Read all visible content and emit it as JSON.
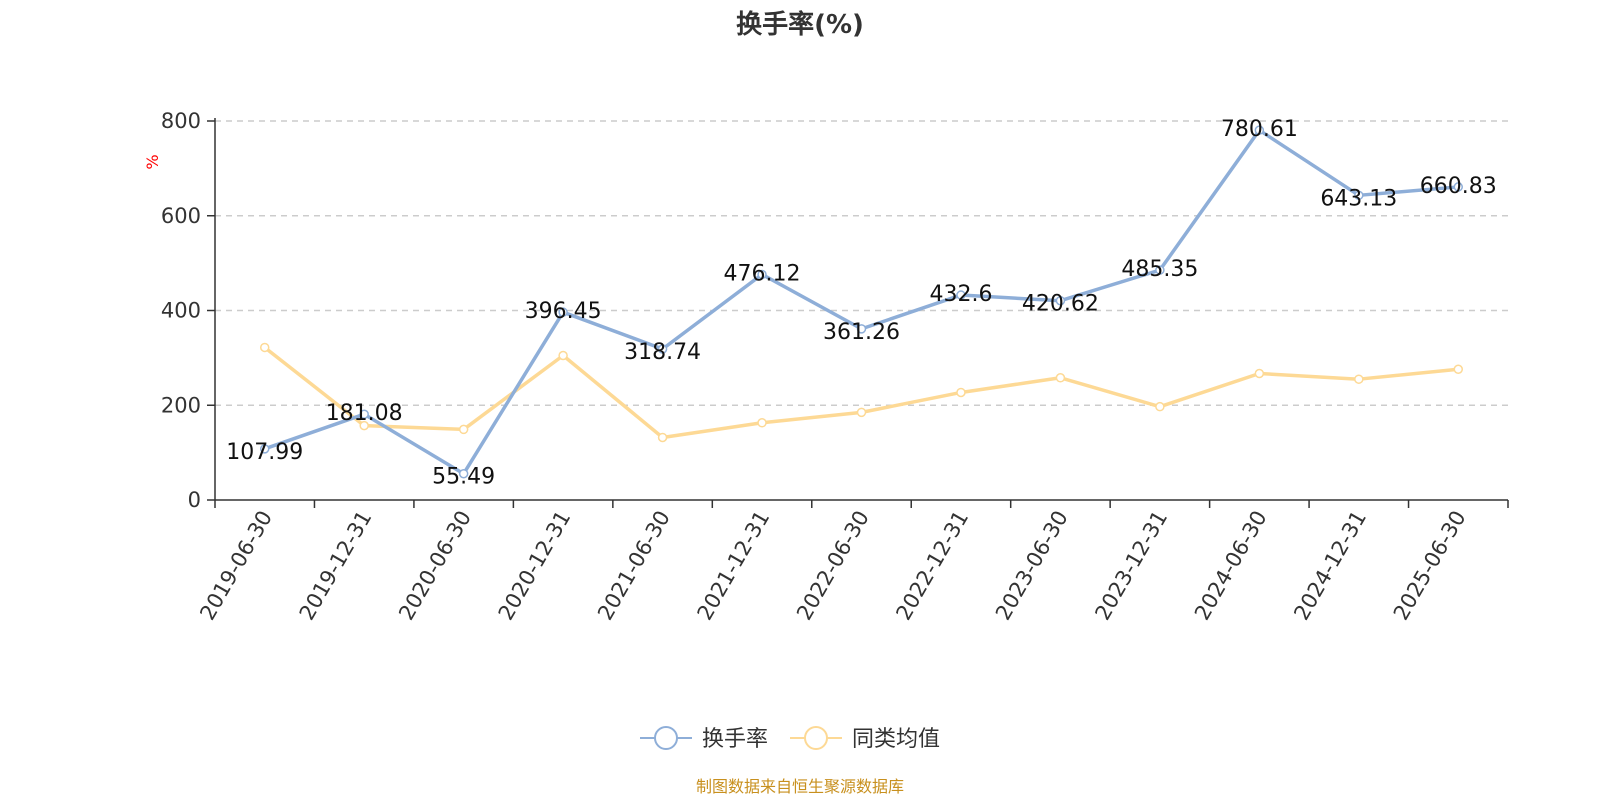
{
  "chart_data": {
    "type": "line",
    "title": "换手率(%)",
    "ylabel": "%",
    "xlabel": "",
    "ylim": [
      0,
      800
    ],
    "yticks": [
      0,
      200,
      400,
      600,
      800
    ],
    "grid": true,
    "legend_position": "bottom-center",
    "categories": [
      "2019-06-30",
      "2019-12-31",
      "2020-06-30",
      "2020-12-31",
      "2021-06-30",
      "2021-12-31",
      "2022-06-30",
      "2022-12-31",
      "2023-06-30",
      "2023-12-31",
      "2024-06-30",
      "2024-12-31",
      "2025-06-30"
    ],
    "series": [
      {
        "name": "换手率",
        "color": "#8eaed8",
        "values": [
          107.99,
          181.08,
          55.49,
          396.45,
          318.74,
          476.12,
          361.26,
          432.6,
          420.62,
          485.35,
          780.61,
          643.13,
          660.83
        ],
        "labels": [
          "107.99",
          "181.08",
          "55.49",
          "396.45",
          "318.74",
          "476.12",
          "361.26",
          "432.6",
          "420.62",
          "485.35",
          "780.61",
          "643.13",
          "660.83"
        ]
      },
      {
        "name": "同类均值",
        "color": "#fdd995",
        "values": [
          322,
          157,
          149,
          305,
          132,
          163,
          185,
          227,
          258,
          197,
          267,
          255,
          276
        ]
      }
    ]
  },
  "source_text": "制图数据来自恒生聚源数据库"
}
